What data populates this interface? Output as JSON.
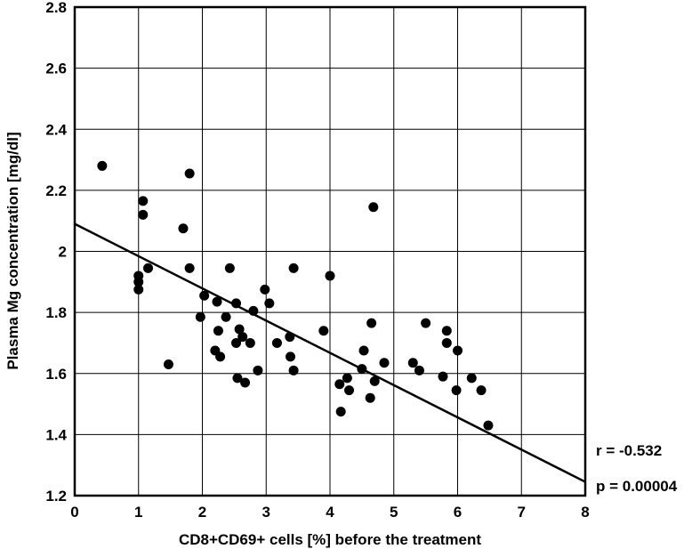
{
  "chart_data": {
    "type": "scatter",
    "title": "",
    "xlabel": "CD8+CD69+ cells [%] before the treatment",
    "ylabel": "Plasma Mg concentration [mg/dl]",
    "xlim": [
      0,
      8
    ],
    "ylim": [
      1.2,
      2.8
    ],
    "x_ticks": [
      "0",
      "1",
      "2",
      "3",
      "4",
      "5",
      "6",
      "7",
      "8"
    ],
    "y_ticks": [
      "1.2",
      "1.4",
      "1.6",
      "1.8",
      "2",
      "2.2",
      "2.4",
      "2.6",
      "2.8"
    ],
    "grid": true,
    "points": [
      [
        0.43,
        2.28
      ],
      [
        1.0,
        1.92
      ],
      [
        1.0,
        1.9
      ],
      [
        1.0,
        1.875
      ],
      [
        1.07,
        2.165
      ],
      [
        1.07,
        2.12
      ],
      [
        1.15,
        1.945
      ],
      [
        1.47,
        1.63
      ],
      [
        1.7,
        2.075
      ],
      [
        1.8,
        2.255
      ],
      [
        1.8,
        1.945
      ],
      [
        1.97,
        1.785
      ],
      [
        2.03,
        1.855
      ],
      [
        2.2,
        1.675
      ],
      [
        2.23,
        1.835
      ],
      [
        2.25,
        1.74
      ],
      [
        2.28,
        1.655
      ],
      [
        2.37,
        1.785
      ],
      [
        2.43,
        1.945
      ],
      [
        2.53,
        1.83
      ],
      [
        2.53,
        1.7
      ],
      [
        2.55,
        1.585
      ],
      [
        2.58,
        1.745
      ],
      [
        2.63,
        1.72
      ],
      [
        2.67,
        1.57
      ],
      [
        2.75,
        1.7
      ],
      [
        2.8,
        1.805
      ],
      [
        2.87,
        1.61
      ],
      [
        2.98,
        1.875
      ],
      [
        3.05,
        1.83
      ],
      [
        3.17,
        1.7
      ],
      [
        3.37,
        1.72
      ],
      [
        3.38,
        1.655
      ],
      [
        3.43,
        1.945
      ],
      [
        3.43,
        1.61
      ],
      [
        3.9,
        1.74
      ],
      [
        4.0,
        1.92
      ],
      [
        4.15,
        1.565
      ],
      [
        4.17,
        1.475
      ],
      [
        4.27,
        1.585
      ],
      [
        4.3,
        1.545
      ],
      [
        4.5,
        1.615
      ],
      [
        4.53,
        1.675
      ],
      [
        4.63,
        1.52
      ],
      [
        4.65,
        1.765
      ],
      [
        4.68,
        2.145
      ],
      [
        4.7,
        1.575
      ],
      [
        4.85,
        1.635
      ],
      [
        5.3,
        1.635
      ],
      [
        5.4,
        1.61
      ],
      [
        5.5,
        1.765
      ],
      [
        5.77,
        1.59
      ],
      [
        5.83,
        1.74
      ],
      [
        5.83,
        1.7
      ],
      [
        5.98,
        1.545
      ],
      [
        6.0,
        1.675
      ],
      [
        6.22,
        1.585
      ],
      [
        6.37,
        1.545
      ],
      [
        6.48,
        1.43
      ]
    ],
    "regression": {
      "x": [
        0,
        8
      ],
      "y": [
        2.09,
        1.245
      ]
    },
    "annotations": [
      "r = -0.532",
      "p = 0.00004"
    ]
  }
}
